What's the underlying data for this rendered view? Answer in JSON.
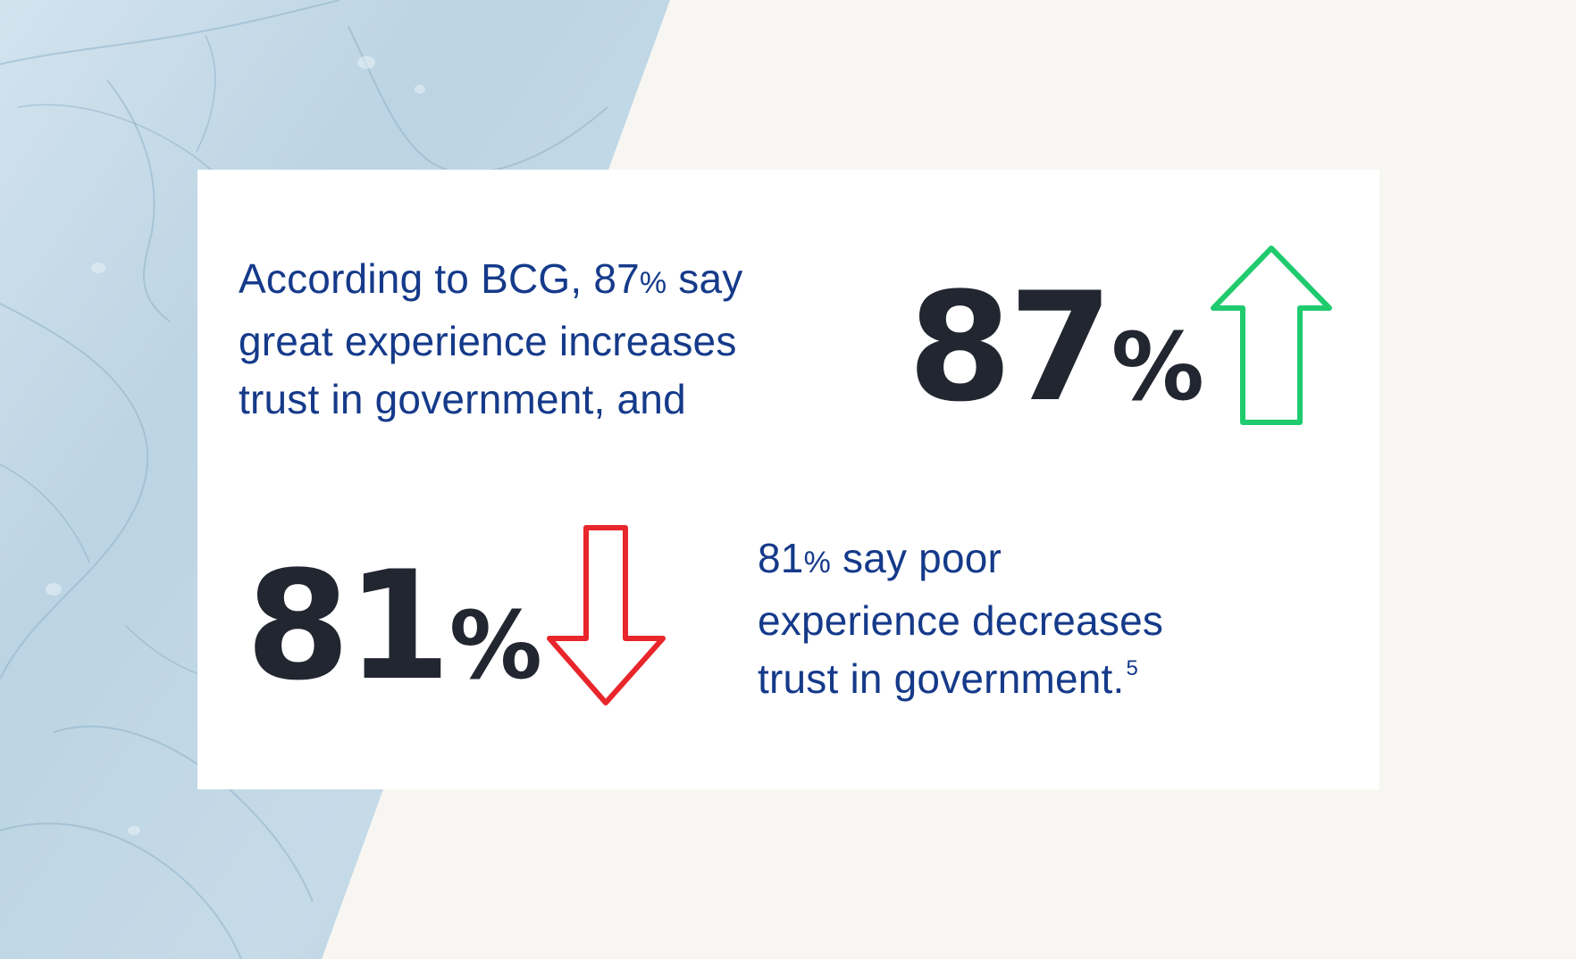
{
  "statement_top": {
    "line1_pre": "According to BCG, 87",
    "line1_pct": "%",
    "line1_post": " say",
    "line2": "great experience increases",
    "line3": "trust in government, and"
  },
  "stat_top": {
    "number": "87",
    "percent_sign": "%"
  },
  "stat_bottom": {
    "number": "81",
    "percent_sign": "%"
  },
  "statement_bottom": {
    "line1_pre": "81",
    "line1_pct": "%",
    "line1_post": " say poor",
    "line2": "experience decreases",
    "line3": "trust in government.",
    "footnote": "5"
  },
  "icons": {
    "up": "arrow-up-icon",
    "down": "arrow-down-icon"
  },
  "colors": {
    "page_bg": "#f7f6f2",
    "card_bg": "#ffffff",
    "statement_text": "#153a8a",
    "stat_text": "#222630",
    "arrow_up": "#1fcb6e",
    "arrow_down": "#e8262b",
    "watercolor": "#b9d3e2"
  }
}
